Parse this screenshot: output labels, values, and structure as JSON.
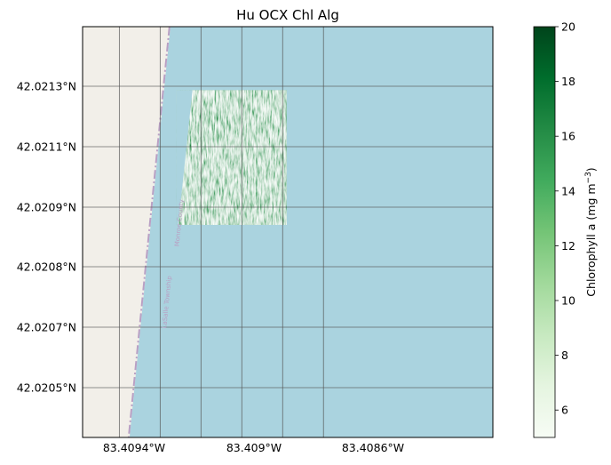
{
  "chart_data": {
    "type": "heatmap",
    "title": "Hu OCX Chl Alg",
    "xlabel": "",
    "ylabel": "",
    "lat_ticks": [
      {
        "value": 42.0213,
        "label": "42.0213°N"
      },
      {
        "value": 42.0211,
        "label": "42.0211°N"
      },
      {
        "value": 42.0209,
        "label": "42.0209°N"
      },
      {
        "value": 42.0208,
        "label": "42.0208°N"
      },
      {
        "value": 42.0207,
        "label": "42.0207°N"
      },
      {
        "value": 42.0205,
        "label": "42.0205°N"
      }
    ],
    "lon_ticks": [
      {
        "value": -83.4094,
        "label": "83.4094°W"
      },
      {
        "value": -83.409,
        "label": "83.409°W"
      },
      {
        "value": -83.4086,
        "label": "83.4086°W"
      }
    ],
    "grid": true,
    "map_labels": [
      "Monroe County",
      "LaSalle Township"
    ],
    "raster_extent": {
      "lon_min": -83.40912,
      "lon_max": -83.40858,
      "lat_min": 42.02051,
      "lat_max": 42.02117
    },
    "shoreline": {
      "north_lon": -83.40915,
      "south_lon": -83.40935
    },
    "colorbar": {
      "label": "Chlorophyll a (mg m⁻³)",
      "label_main": "Chlorophyll a (mg m",
      "label_sup": "−3",
      "label_close": ")",
      "min": 5,
      "max": 20,
      "ticks": [
        6,
        8,
        10,
        12,
        14,
        16,
        18,
        20
      ],
      "colormap": "Greens"
    }
  },
  "colors": {
    "land": "#f2efe9",
    "water": "#aad3df",
    "boundary": "#b9a0c4",
    "grid": "#555555",
    "greens": [
      "#f7fcf5",
      "#e5f5e0",
      "#c7e9c0",
      "#a1d99b",
      "#74c476",
      "#41ab5d",
      "#238b45",
      "#006d2c",
      "#00441b"
    ]
  }
}
